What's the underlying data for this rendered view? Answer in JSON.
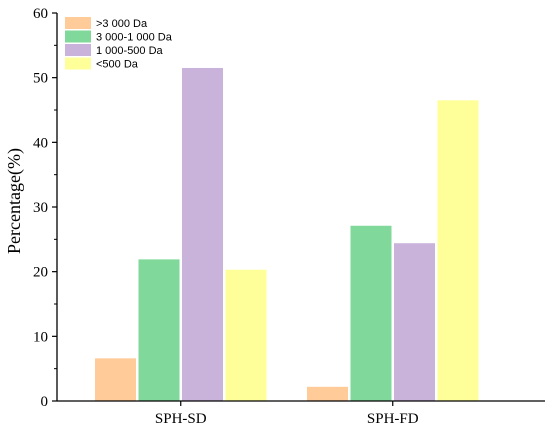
{
  "chart_data": {
    "type": "bar",
    "categories": [
      "SPH-SD",
      "SPH-FD"
    ],
    "series": [
      {
        "name": ">3 000 Da",
        "color": "#FFCC99",
        "values": [
          6.6,
          2.2
        ]
      },
      {
        "name": "3 000-1 000 Da",
        "color": "#80D99A",
        "values": [
          21.9,
          27.1
        ]
      },
      {
        "name": "1 000-500 Da",
        "color": "#C9B3DB",
        "values": [
          51.5,
          24.4
        ]
      },
      {
        "name": "<500 Da",
        "color": "#FFFF99",
        "values": [
          20.3,
          46.5
        ]
      }
    ],
    "ylabel": "Percentage(%)",
    "xlabel": "",
    "ylim": [
      0,
      60
    ],
    "yticks": [
      0,
      10,
      20,
      30,
      40,
      50,
      60
    ],
    "grid": false,
    "legend_position": "top-left"
  }
}
